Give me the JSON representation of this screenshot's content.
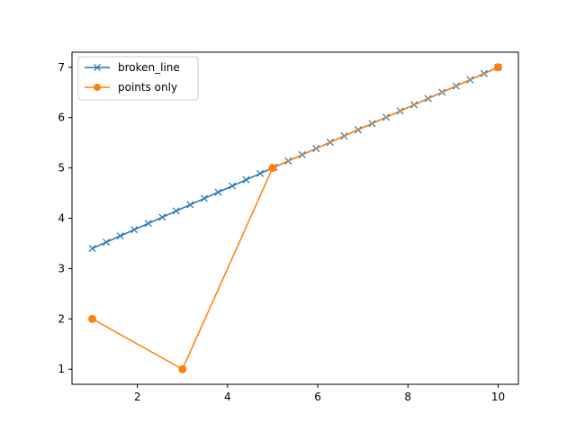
{
  "chart_data": {
    "type": "line",
    "xlim": [
      0.55,
      10.45
    ],
    "ylim": [
      0.7,
      7.3
    ],
    "xticks": [
      2,
      4,
      6,
      8,
      10
    ],
    "yticks": [
      1,
      2,
      3,
      4,
      5,
      6,
      7
    ],
    "grid": false,
    "legend_position": "upper-left",
    "series": [
      {
        "name": "broken_line",
        "color": "#1f77b4",
        "marker": "x",
        "x": [
          1.0,
          1.3103,
          1.6207,
          1.931,
          2.2414,
          2.5517,
          2.8621,
          3.1724,
          3.4828,
          3.7931,
          4.1034,
          4.4138,
          4.7241,
          5.0345,
          5.3448,
          5.6552,
          5.9655,
          6.2759,
          6.5862,
          6.8966,
          7.2069,
          7.5172,
          7.8276,
          8.1379,
          8.4483,
          8.7586,
          9.069,
          9.3793,
          9.6897,
          10.0
        ],
        "y": [
          3.4,
          3.5241,
          3.6483,
          3.7724,
          3.8966,
          4.0207,
          4.1448,
          4.269,
          4.3931,
          4.5172,
          4.6414,
          4.7655,
          4.8897,
          5.0138,
          5.1379,
          5.2621,
          5.3862,
          5.5103,
          5.6345,
          5.7586,
          5.8828,
          6.0069,
          6.131,
          6.2552,
          6.3793,
          6.5034,
          6.6276,
          6.7517,
          6.8759,
          7.0
        ]
      },
      {
        "name": "points only",
        "color": "#ff7f0e",
        "marker": "o",
        "x": [
          1,
          3,
          5,
          10
        ],
        "y": [
          2,
          1,
          5,
          7
        ]
      }
    ]
  }
}
